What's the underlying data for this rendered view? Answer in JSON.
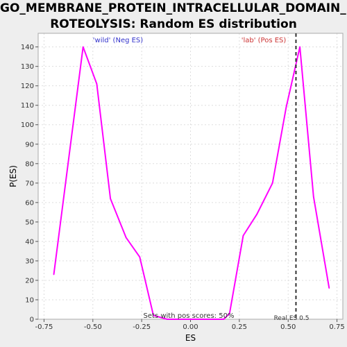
{
  "title_lines": [
    "GO_MEMBRANE_PROTEIN_INTRACELLULAR_DOMAIN_P",
    "ROTEOLYSIS: Random ES distribution"
  ],
  "colors": {
    "background": "#eeeeee",
    "plot_bg": "#ffffff",
    "curve": "#ff00ff",
    "neg_label": "#3333cc",
    "pos_label": "#cc3333",
    "real_es_line": "#333333",
    "grid": "#dddddd"
  },
  "chart_data": {
    "type": "line",
    "title": "GO_MEMBRANE_PROTEIN_INTRACELLULAR_DOMAIN_PROTEOLYSIS: Random ES distribution",
    "xlabel": "ES",
    "ylabel": "P(ES)",
    "xlim": [
      -0.78,
      0.78
    ],
    "ylim": [
      0,
      147
    ],
    "grid": true,
    "x_ticks": [
      -0.75,
      -0.5,
      -0.25,
      0.0,
      0.25,
      0.5,
      0.75
    ],
    "x_tick_labels": [
      "-0.75",
      "-0.50",
      "-0.25",
      "0.00",
      "0.25",
      "0.50",
      "0.75"
    ],
    "y_ticks": [
      0,
      10,
      20,
      30,
      40,
      50,
      60,
      70,
      80,
      90,
      100,
      110,
      120,
      130,
      140
    ],
    "y_tick_labels": [
      "0",
      "10",
      "20",
      "30",
      "40",
      "50",
      "60",
      "70",
      "80",
      "90",
      "100",
      "110",
      "120",
      "130",
      "140"
    ],
    "series": [
      {
        "x": [
          -0.7,
          -0.55,
          -0.48,
          -0.41,
          -0.33,
          -0.26,
          -0.19,
          -0.12,
          -0.05,
          0.02,
          0.1,
          0.17,
          0.2,
          0.27,
          0.34,
          0.42,
          0.49,
          0.56,
          0.63,
          0.71
        ],
        "values": [
          23,
          140,
          121,
          62,
          42,
          32,
          2,
          0,
          0,
          0,
          0,
          0,
          3,
          43,
          54,
          70,
          109,
          140,
          63,
          16
        ]
      }
    ],
    "annotations": {
      "neg_label": "'wild' (Neg ES)",
      "pos_label": "'lab' (Pos ES)",
      "sets_text": "Sets with pos scores: 50%",
      "real_es_label": "Real ES 0.5",
      "real_es": 0.54
    }
  }
}
